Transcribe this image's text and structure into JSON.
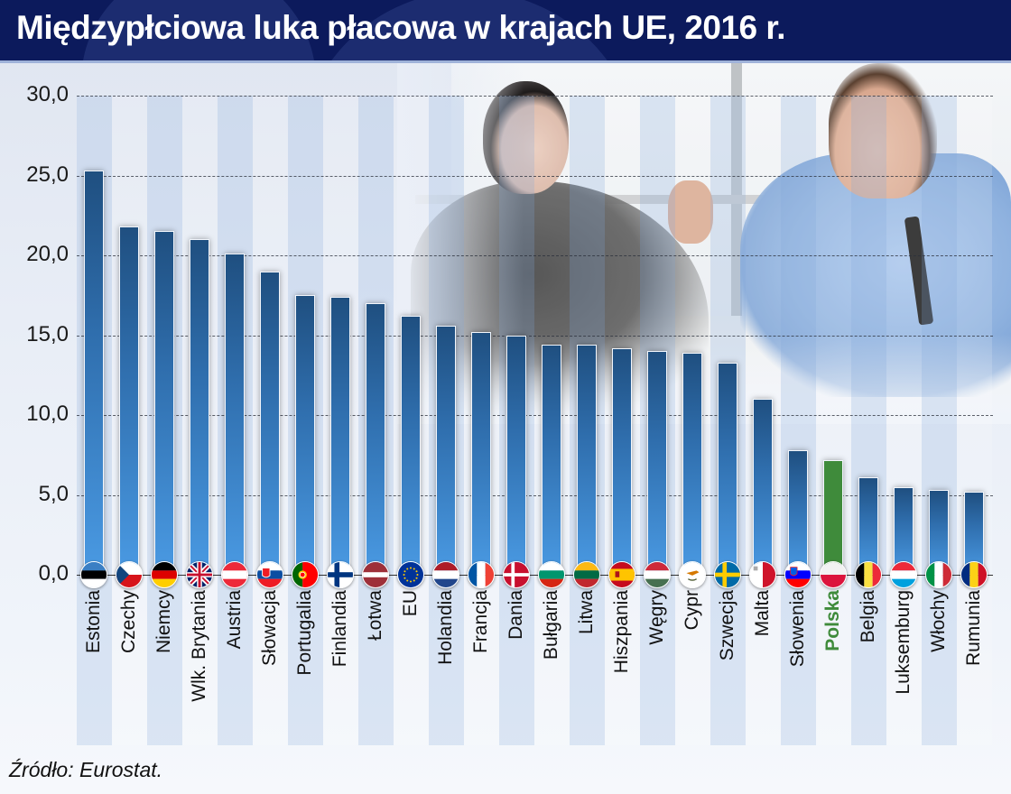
{
  "header": {
    "title": "Międzypłciowa luka płacowa w krajach UE, 2016 r.",
    "background_color": "#0c1a5c"
  },
  "footer": {
    "source": "Źródło: Eurostat."
  },
  "axis": {
    "y_ticks": [
      "0,0",
      "5,0",
      "10,0",
      "15,0",
      "20,0",
      "25,0",
      "30,0"
    ]
  },
  "colors": {
    "bar": "#2f6ead",
    "highlight_bar": "#3f8b3b",
    "highlight_label": "#3f8b3b"
  },
  "chart_data": {
    "type": "bar",
    "title": "Międzypłciowa luka płacowa w krajach UE, 2016 r.",
    "xlabel": "",
    "ylabel": "",
    "ylim": [
      0,
      30
    ],
    "y_ticks": [
      0,
      5,
      10,
      15,
      20,
      25,
      30
    ],
    "grid": true,
    "legend": null,
    "highlight": "Polska",
    "source": "Źródło: Eurostat.",
    "categories": [
      "Estonia",
      "Czechy",
      "Niemcy",
      "Wlk. Brytania",
      "Austria",
      "Słowacja",
      "Portugalia",
      "Finlandia",
      "Łotwa",
      "EU",
      "Holandia",
      "Francja",
      "Dania",
      "Bułgaria",
      "Litwa",
      "Hiszpania",
      "Węgry",
      "Cypr",
      "Szwecja",
      "Malta",
      "Słowenia",
      "Polska",
      "Belgia",
      "Luksemburg",
      "Włochy",
      "Rumunia"
    ],
    "values": [
      25.3,
      21.8,
      21.5,
      21.0,
      20.1,
      19.0,
      17.5,
      17.4,
      17.0,
      16.2,
      15.6,
      15.2,
      15.0,
      14.4,
      14.4,
      14.2,
      14.0,
      13.9,
      13.3,
      11.0,
      7.8,
      7.2,
      6.1,
      5.5,
      5.3,
      5.2
    ],
    "flags": [
      "estonia-flag",
      "czech-flag",
      "germany-flag",
      "uk-flag",
      "austria-flag",
      "slovakia-flag",
      "portugal-flag",
      "finland-flag",
      "latvia-flag",
      "eu-flag",
      "netherlands-flag",
      "france-flag",
      "denmark-flag",
      "bulgaria-flag",
      "lithuania-flag",
      "spain-flag",
      "hungary-flag",
      "cyprus-flag",
      "sweden-flag",
      "malta-flag",
      "slovenia-flag",
      "poland-flag",
      "belgium-flag",
      "luxembourg-flag",
      "italy-flag",
      "romania-flag"
    ]
  }
}
